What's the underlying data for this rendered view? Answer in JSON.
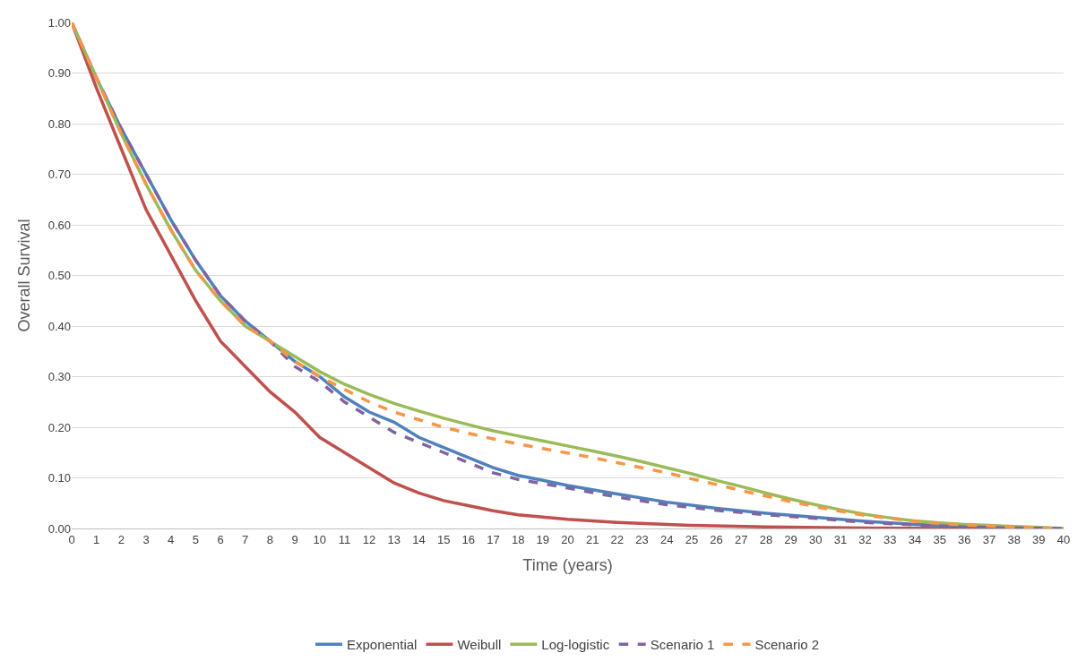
{
  "chart_data": {
    "type": "line",
    "xlabel": "Time (years)",
    "ylabel": "Overall Survival",
    "xlim": [
      0,
      40
    ],
    "xticks": [
      0,
      1,
      2,
      3,
      4,
      5,
      6,
      7,
      8,
      9,
      10,
      11,
      12,
      13,
      14,
      15,
      16,
      17,
      18,
      19,
      20,
      21,
      22,
      23,
      24,
      25,
      26,
      27,
      28,
      29,
      30,
      31,
      32,
      33,
      34,
      35,
      36,
      37,
      38,
      39,
      40
    ],
    "ylim": [
      0,
      1
    ],
    "yticks": [
      {
        "value": 0,
        "label": "0.00"
      },
      {
        "value": 0.1,
        "label": "0.10"
      },
      {
        "value": 0.2,
        "label": "0.20"
      },
      {
        "value": 0.3,
        "label": "0.30"
      },
      {
        "value": 0.4,
        "label": "0.40"
      },
      {
        "value": 0.5,
        "label": "0.50"
      },
      {
        "value": 0.6,
        "label": "0.60"
      },
      {
        "value": 0.7,
        "label": "0.70"
      },
      {
        "value": 0.8,
        "label": "0.80"
      },
      {
        "value": 0.9,
        "label": "0.90"
      },
      {
        "value": 1,
        "label": "1.00"
      }
    ],
    "grid": "y",
    "legend": "bottom",
    "marker": "none",
    "series": [
      {
        "name": "Exponential",
        "color": "#4f81bd",
        "line_style": "solid",
        "x": [
          0,
          1,
          2,
          3,
          4,
          5,
          6,
          7,
          8,
          9,
          10,
          11,
          12,
          13,
          14,
          15,
          16,
          17,
          18,
          19,
          20,
          22,
          24,
          26,
          28,
          30,
          32,
          34,
          36,
          38,
          40
        ],
        "values": [
          1.0,
          0.89,
          0.79,
          0.7,
          0.61,
          0.53,
          0.46,
          0.41,
          0.37,
          0.33,
          0.3,
          0.26,
          0.23,
          0.21,
          0.18,
          0.16,
          0.14,
          0.12,
          0.105,
          0.095,
          0.085,
          0.068,
          0.052,
          0.04,
          0.03,
          0.022,
          0.014,
          0.008,
          0.004,
          0.002,
          0
        ]
      },
      {
        "name": "Weibull",
        "color": "#c0504d",
        "line_style": "solid",
        "x": [
          0,
          1,
          2,
          3,
          4,
          5,
          6,
          7,
          8,
          9,
          10,
          11,
          12,
          13,
          14,
          15,
          16,
          17,
          18,
          20,
          22,
          25,
          28,
          32,
          36,
          40
        ],
        "values": [
          1.0,
          0.87,
          0.75,
          0.63,
          0.54,
          0.45,
          0.37,
          0.32,
          0.27,
          0.23,
          0.18,
          0.15,
          0.12,
          0.09,
          0.07,
          0.055,
          0.045,
          0.035,
          0.027,
          0.018,
          0.012,
          0.006,
          0.003,
          0.001,
          0,
          0
        ]
      },
      {
        "name": "Log-logistic",
        "color": "#9bbb59",
        "line_style": "solid",
        "x": [
          0,
          1,
          2,
          3,
          4,
          5,
          6,
          7,
          8,
          9,
          10,
          11,
          12,
          13,
          14,
          15,
          16,
          17,
          18,
          19,
          20,
          21,
          22,
          23,
          24,
          25,
          26,
          27,
          28,
          29,
          30,
          31,
          32,
          33,
          34,
          35,
          36,
          37,
          38,
          39,
          40
        ],
        "values": [
          1.0,
          0.89,
          0.78,
          0.68,
          0.59,
          0.51,
          0.45,
          0.4,
          0.37,
          0.34,
          0.31,
          0.285,
          0.265,
          0.247,
          0.232,
          0.218,
          0.205,
          0.193,
          0.183,
          0.173,
          0.163,
          0.153,
          0.143,
          0.132,
          0.12,
          0.108,
          0.095,
          0.083,
          0.07,
          0.058,
          0.047,
          0.037,
          0.028,
          0.021,
          0.015,
          0.011,
          0.008,
          0.006,
          0.004,
          0.002,
          0
        ]
      },
      {
        "name": "Scenario 1",
        "color": "#8064a2",
        "line_style": "dashed",
        "x": [
          0,
          1,
          2,
          3,
          4,
          5,
          6,
          7,
          8,
          9,
          10,
          11,
          12,
          13,
          14,
          15,
          16,
          17,
          18,
          20,
          22,
          24,
          26,
          28,
          30,
          32,
          34,
          36,
          38,
          40
        ],
        "values": [
          1.0,
          0.89,
          0.79,
          0.7,
          0.61,
          0.53,
          0.46,
          0.41,
          0.37,
          0.32,
          0.29,
          0.25,
          0.22,
          0.19,
          0.17,
          0.15,
          0.13,
          0.11,
          0.097,
          0.08,
          0.062,
          0.047,
          0.036,
          0.027,
          0.02,
          0.012,
          0.007,
          0.003,
          0.001,
          0
        ]
      },
      {
        "name": "Scenario 2",
        "color": "#f79646",
        "line_style": "dashed",
        "x": [
          0,
          1,
          2,
          3,
          4,
          5,
          6,
          7,
          8,
          9,
          10,
          11,
          12,
          13,
          14,
          15,
          16,
          17,
          18,
          19,
          20,
          21,
          22,
          23,
          24,
          25,
          26,
          27,
          28,
          29,
          30,
          31,
          32,
          33,
          34,
          35,
          36,
          37,
          38,
          39,
          40
        ],
        "values": [
          1.0,
          0.89,
          0.78,
          0.68,
          0.59,
          0.51,
          0.45,
          0.4,
          0.37,
          0.33,
          0.3,
          0.275,
          0.25,
          0.23,
          0.215,
          0.2,
          0.188,
          0.177,
          0.167,
          0.158,
          0.149,
          0.14,
          0.13,
          0.12,
          0.11,
          0.098,
          0.087,
          0.075,
          0.064,
          0.053,
          0.043,
          0.034,
          0.026,
          0.02,
          0.014,
          0.01,
          0.007,
          0.005,
          0.003,
          0.001,
          0
        ]
      }
    ]
  }
}
